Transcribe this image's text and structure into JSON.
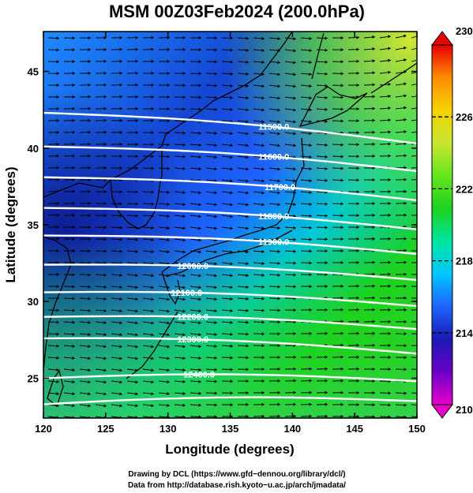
{
  "title": "MSM 00Z03Feb2024 (200.0hPa)",
  "x_axis": {
    "label": "Longitude (degrees)",
    "range": [
      120,
      150
    ],
    "ticks": [
      "120",
      "125",
      "130",
      "135",
      "140",
      "145",
      "150"
    ]
  },
  "y_axis": {
    "label": "Latitude  (degrees)",
    "range": [
      22.4,
      47.6
    ],
    "ticks": [
      "25",
      "30",
      "35",
      "40",
      "45"
    ]
  },
  "colorbar": {
    "range": [
      210,
      230
    ],
    "ticks": [
      "210",
      "214",
      "218",
      "222",
      "226",
      "230"
    ],
    "colors": [
      "#e600c8",
      "#6a00c8",
      "#1a1ab4",
      "#1e64ff",
      "#00c8ff",
      "#00e6a0",
      "#1ed21e",
      "#64e61e",
      "#c8e632",
      "#f5d200",
      "#ff8c00",
      "#e60000"
    ]
  },
  "contours": [
    {
      "label": "11500.0",
      "lat_west": 42.3,
      "lat_east": 40.3
    },
    {
      "label": "11600.0",
      "lat_west": 40.1,
      "lat_east": 38.5
    },
    {
      "label": "11700.0",
      "lat_west": 38.1,
      "lat_east": 36.6
    },
    {
      "label": "11800.0",
      "lat_west": 36.1,
      "lat_east": 34.7
    },
    {
      "label": "11900.0",
      "lat_west": 34.3,
      "lat_east": 33.1
    },
    {
      "label": "12000.0",
      "lat_west": 32.4,
      "lat_east": 31.4
    },
    {
      "label": "12100.0",
      "lat_west": 30.6,
      "lat_east": 29.7
    },
    {
      "label": "12200.0",
      "lat_west": 29.0,
      "lat_east": 28.2
    },
    {
      "label": "12300.0",
      "lat_west": 27.6,
      "lat_east": 26.6
    },
    {
      "label": "12400.0",
      "lat_west": 25.0,
      "lat_east": 24.8
    },
    {
      "label": "",
      "lat_west": 23.3,
      "lat_east": 23.5
    }
  ],
  "credits": [
    "Drawing by DCL (https://www.gfd−dennou.org/library/dcl/)",
    "Data from http://database.rish.kyoto−u.ac.jp/arch/jmadata/"
  ]
}
